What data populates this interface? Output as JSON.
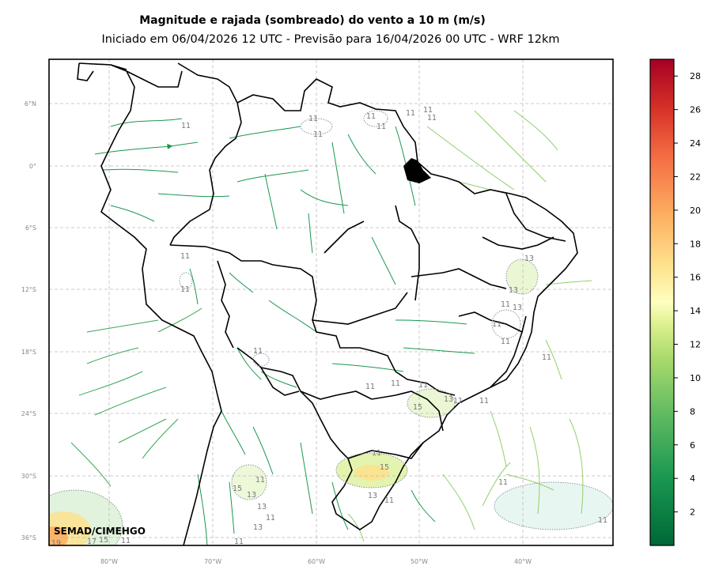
{
  "header": {
    "title": "Magnitude e rajada (sombreado) do vento a 10 m (m/s)",
    "subtitle": "Iniciado em 06/04/2026 12 UTC - Previsão para 16/04/2026 00 UTC - WRF 12km"
  },
  "map": {
    "lat_labels": [
      "6°N",
      "0°",
      "6°S",
      "12°S",
      "18°S",
      "24°S",
      "30°S",
      "36°S"
    ],
    "lon_labels": [
      "80°W",
      "70°W",
      "60°W",
      "50°W",
      "40°W"
    ],
    "credit": "SEMAD/CIMEHGO",
    "contour_labels": [
      "11",
      "11",
      "11",
      "11",
      "11",
      "11",
      "11",
      "11",
      "11",
      "11",
      "11",
      "13",
      "13",
      "11",
      "13",
      "11",
      "11",
      "11",
      "11",
      "11",
      "11",
      "11",
      "15",
      "13",
      "11",
      "11",
      "11",
      "15",
      "13",
      "11",
      "15",
      "13",
      "13",
      "11",
      "11",
      "13",
      "11",
      "19",
      "17",
      "15",
      "11",
      "11"
    ]
  },
  "colorbar": {
    "ticks": [
      "2",
      "4",
      "6",
      "8",
      "10",
      "12",
      "14",
      "16",
      "18",
      "20",
      "22",
      "24",
      "26",
      "28"
    ],
    "range": [
      0,
      29
    ],
    "colormap": "RdYlGn_r"
  }
}
